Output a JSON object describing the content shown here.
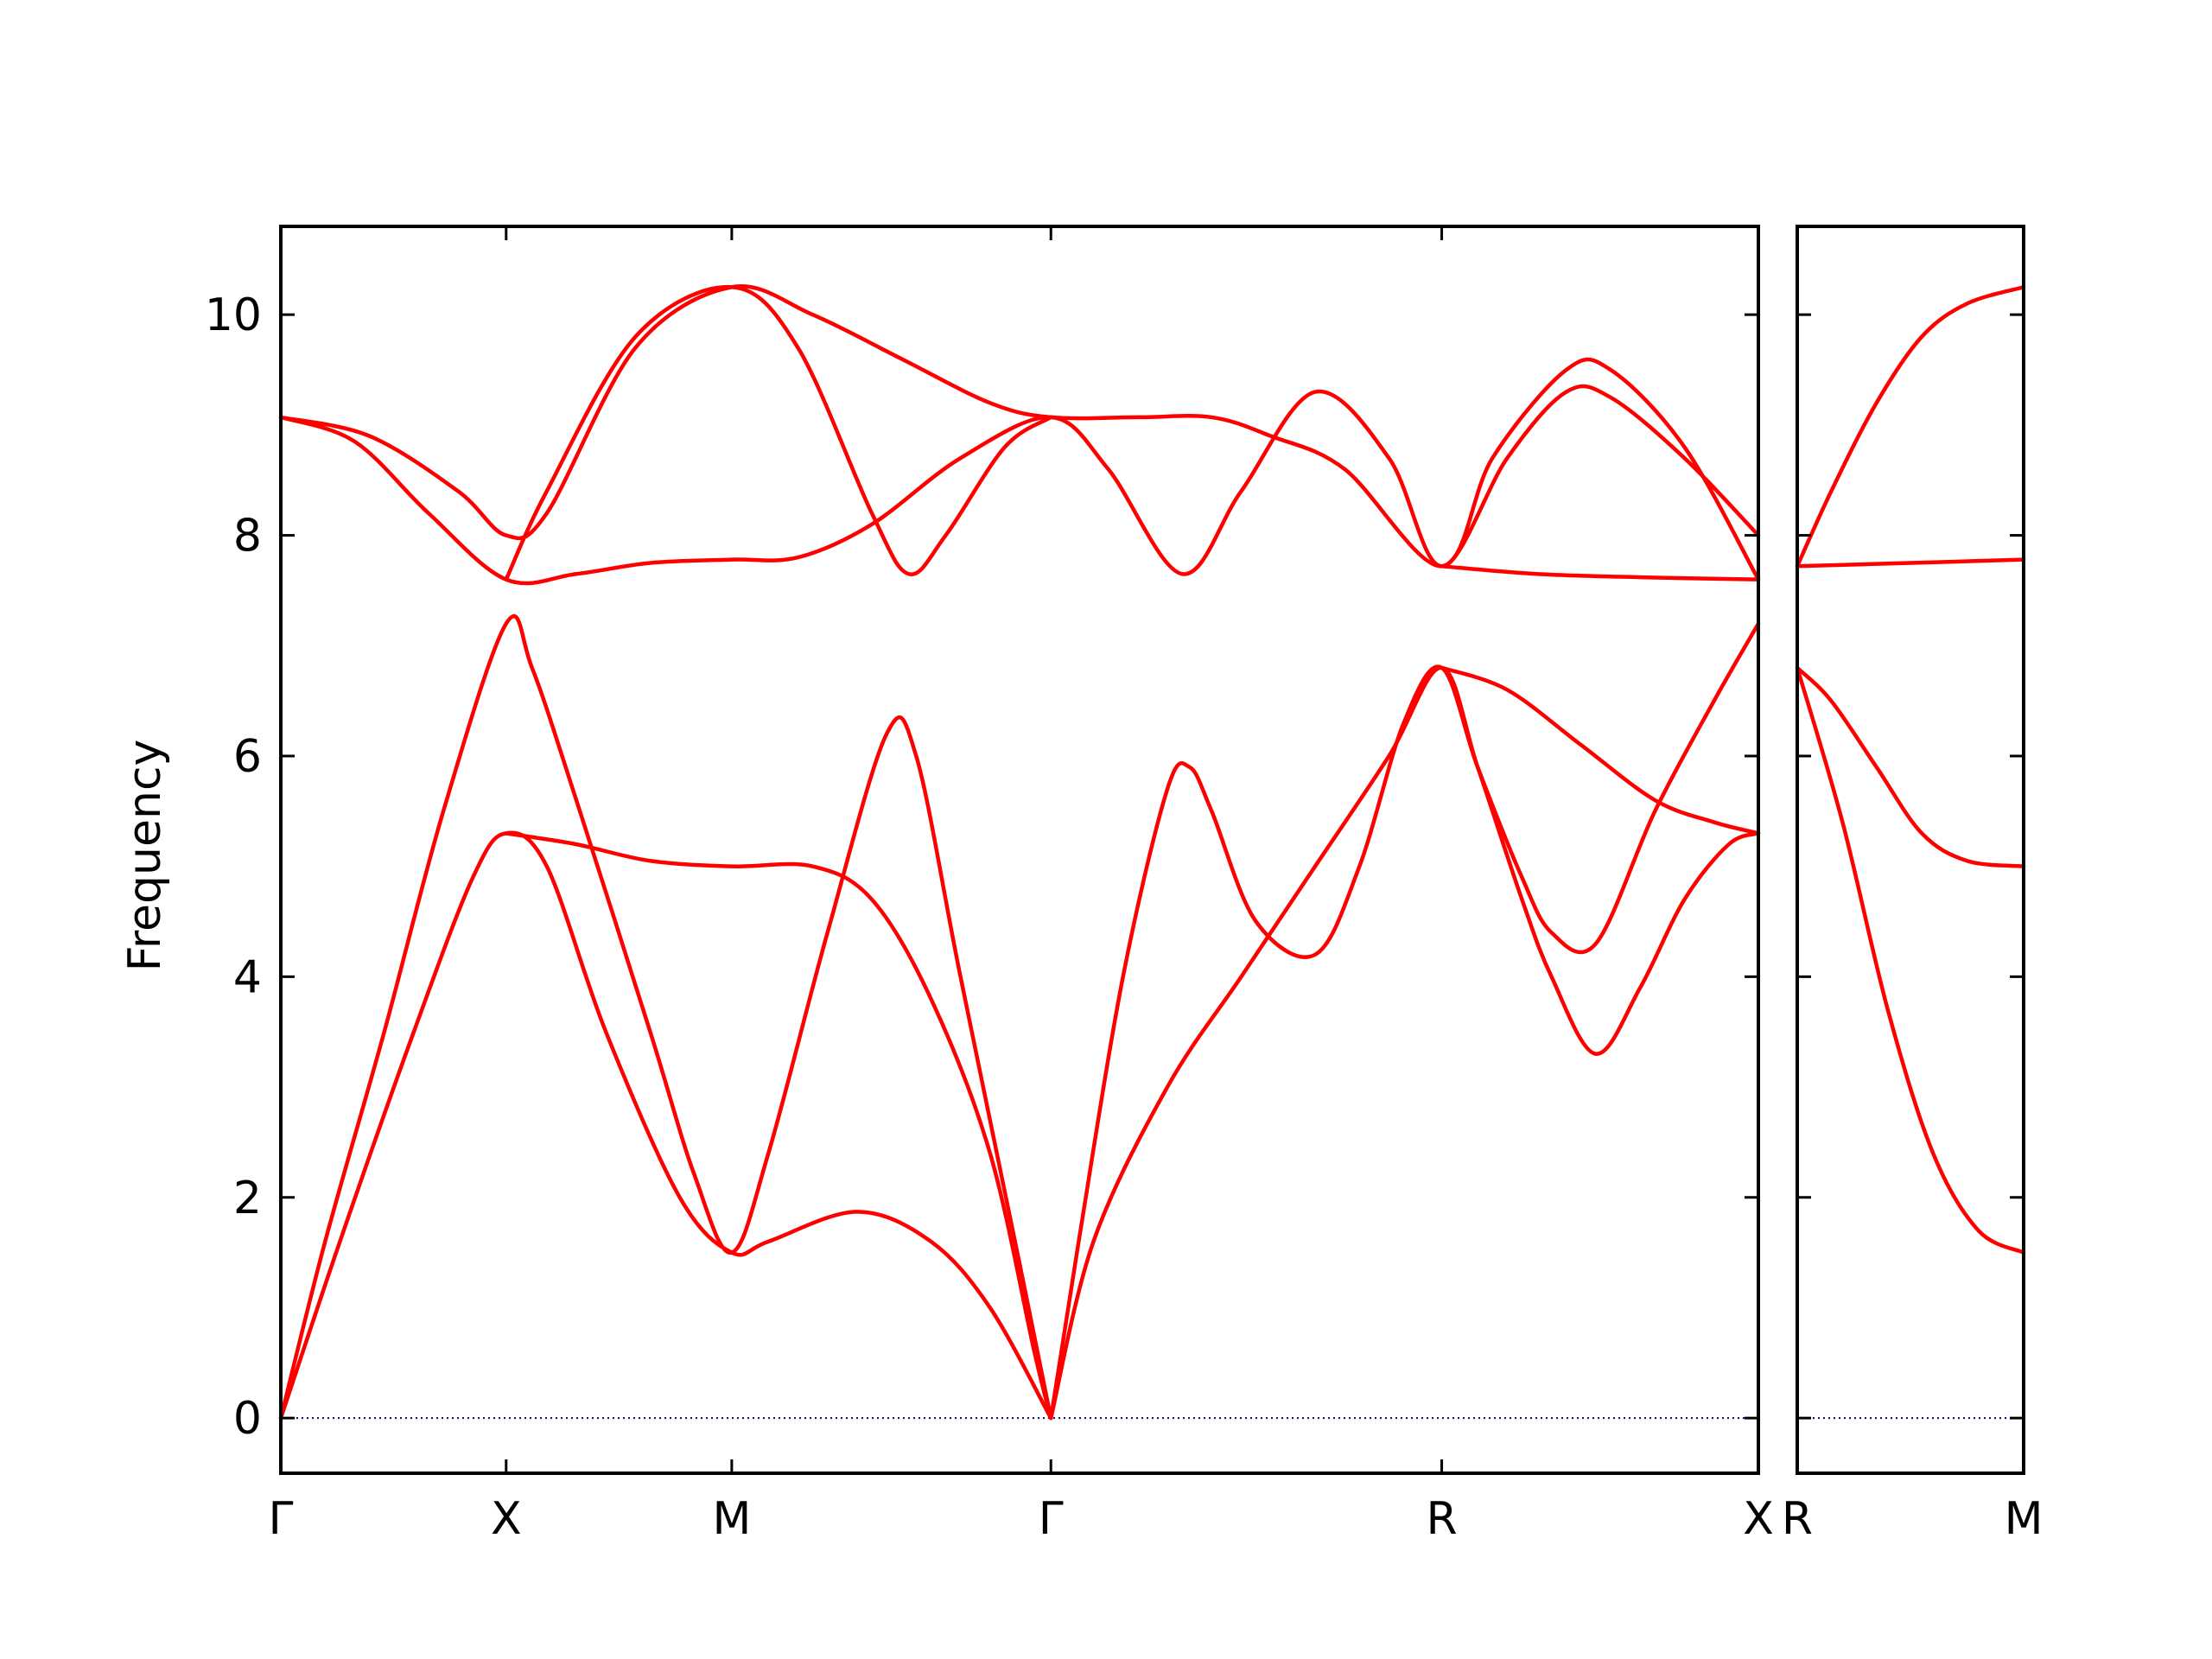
{
  "chart_data": {
    "type": "line",
    "title": "",
    "ylabel": "Frequency",
    "ylim": [
      -0.5,
      10.8
    ],
    "yticks": [
      0,
      2,
      4,
      6,
      8,
      10
    ],
    "grid": false,
    "legend": "none",
    "colors": {
      "bands": "#ff0000",
      "zero_line": "#00008b",
      "axes": "#000000"
    },
    "panels": [
      {
        "name": "main",
        "xlim": [
          0,
          1
        ],
        "xticks": [
          {
            "x": 0.0,
            "label": "Γ"
          },
          {
            "x": 0.1525,
            "label": "X"
          },
          {
            "x": 0.3052,
            "label": "M"
          },
          {
            "x": 0.5212,
            "label": "Γ"
          },
          {
            "x": 0.7857,
            "label": "R"
          },
          {
            "x": 1.0,
            "label": "X"
          }
        ],
        "series": [
          {
            "values": [
              [
                0,
                0
              ],
              [
                0.03,
                1.6
              ],
              [
                0.07,
                3.5
              ],
              [
                0.11,
                5.5
              ],
              [
                0.1525,
                7.2
              ],
              [
                0.17,
                6.8
              ],
              [
                0.2,
                5.6
              ],
              [
                0.25,
                3.5
              ],
              [
                0.28,
                2.2
              ],
              [
                0.3052,
                1.5
              ],
              [
                0.33,
                2.4
              ],
              [
                0.37,
                4.4
              ],
              [
                0.41,
                6.2
              ],
              [
                0.43,
                6.0
              ],
              [
                0.46,
                4.0
              ],
              [
                0.5,
                1.4
              ],
              [
                0.5212,
                0
              ]
            ]
          },
          {
            "values": [
              [
                0,
                0
              ],
              [
                0.04,
                1.6
              ],
              [
                0.09,
                3.5
              ],
              [
                0.13,
                4.9
              ],
              [
                0.1525,
                5.3
              ],
              [
                0.18,
                5.0
              ],
              [
                0.22,
                3.5
              ],
              [
                0.27,
                2.0
              ],
              [
                0.3052,
                1.5
              ],
              [
                0.33,
                1.6
              ],
              [
                0.39,
                1.87
              ],
              [
                0.44,
                1.6
              ],
              [
                0.48,
                1.0
              ],
              [
                0.5212,
                0
              ]
            ]
          },
          {
            "values": [
              [
                0.1525,
                5.3
              ],
              [
                0.2,
                5.2
              ],
              [
                0.25,
                5.05
              ],
              [
                0.3052,
                5.0
              ],
              [
                0.36,
                5.0
              ],
              [
                0.4,
                4.7
              ],
              [
                0.44,
                3.8
              ],
              [
                0.48,
                2.4
              ],
              [
                0.51,
                0.6
              ],
              [
                0.5212,
                0
              ]
            ]
          },
          {
            "values": [
              [
                0.5212,
                0
              ],
              [
                0.55,
                1.6
              ],
              [
                0.6,
                3.0
              ],
              [
                0.65,
                4.0
              ],
              [
                0.7,
                5.0
              ],
              [
                0.75,
                6.0
              ],
              [
                0.7857,
                6.8
              ],
              [
                0.81,
                5.9
              ],
              [
                0.84,
                4.7
              ],
              [
                0.86,
                4.0
              ],
              [
                0.89,
                3.3
              ],
              [
                0.92,
                3.9
              ],
              [
                0.95,
                4.7
              ],
              [
                0.98,
                5.2
              ],
              [
                1.0,
                5.3
              ]
            ]
          },
          {
            "values": [
              [
                0.5212,
                0
              ],
              [
                0.54,
                1.6
              ],
              [
                0.57,
                4.0
              ],
              [
                0.6,
                5.7
              ],
              [
                0.615,
                5.9
              ],
              [
                0.63,
                5.5
              ],
              [
                0.66,
                4.5
              ],
              [
                0.7,
                4.2
              ],
              [
                0.73,
                5.0
              ],
              [
                0.76,
                6.3
              ],
              [
                0.7857,
                6.8
              ],
              [
                0.81,
                5.9
              ],
              [
                0.84,
                4.9
              ],
              [
                0.86,
                4.4
              ],
              [
                0.89,
                4.3
              ],
              [
                0.93,
                5.5
              ],
              [
                0.97,
                6.5
              ],
              [
                1.0,
                7.2
              ]
            ]
          },
          {
            "values": [
              [
                0.7857,
                6.8
              ],
              [
                0.83,
                6.6
              ],
              [
                0.88,
                6.1
              ],
              [
                0.93,
                5.6
              ],
              [
                0.97,
                5.4
              ],
              [
                1.0,
                5.3
              ]
            ]
          },
          {
            "values": [
              [
                0,
                9.07
              ],
              [
                0.05,
                8.85
              ],
              [
                0.1,
                8.2
              ],
              [
                0.1525,
                7.6
              ],
              [
                0.2,
                7.65
              ],
              [
                0.25,
                7.75
              ],
              [
                0.3052,
                7.78
              ],
              [
                0.35,
                7.8
              ],
              [
                0.4,
                8.1
              ],
              [
                0.46,
                8.7
              ],
              [
                0.5212,
                9.07
              ],
              [
                0.56,
                8.6
              ],
              [
                0.61,
                7.65
              ],
              [
                0.65,
                8.4
              ],
              [
                0.7,
                9.3
              ],
              [
                0.75,
                8.7
              ],
              [
                0.7857,
                7.72
              ],
              [
                0.83,
                8.7
              ],
              [
                0.87,
                9.3
              ],
              [
                0.9,
                9.25
              ],
              [
                0.95,
                8.7
              ],
              [
                1.0,
                8.0
              ]
            ]
          },
          {
            "values": [
              [
                0,
                9.07
              ],
              [
                0.06,
                8.9
              ],
              [
                0.12,
                8.4
              ],
              [
                0.1525,
                8.0
              ],
              [
                0.18,
                8.2
              ],
              [
                0.24,
                9.7
              ],
              [
                0.3052,
                10.25
              ],
              [
                0.36,
                10.0
              ],
              [
                0.42,
                9.6
              ],
              [
                0.48,
                9.2
              ],
              [
                0.5212,
                9.07
              ],
              [
                0.58,
                9.07
              ],
              [
                0.63,
                9.07
              ],
              [
                0.67,
                8.9
              ],
              [
                0.72,
                8.6
              ],
              [
                0.7857,
                7.72
              ],
              [
                0.82,
                8.7
              ],
              [
                0.87,
                9.5
              ],
              [
                0.9,
                9.5
              ],
              [
                0.95,
                8.8
              ],
              [
                1.0,
                7.6
              ]
            ]
          },
          {
            "values": [
              [
                0.1525,
                7.6
              ],
              [
                0.18,
                8.4
              ],
              [
                0.24,
                9.8
              ],
              [
                0.3052,
                10.25
              ],
              [
                0.35,
                9.7
              ],
              [
                0.4,
                8.2
              ],
              [
                0.425,
                7.65
              ],
              [
                0.45,
                8.0
              ],
              [
                0.49,
                8.8
              ],
              [
                0.5212,
                9.07
              ]
            ]
          },
          {
            "values": [
              [
                0.7857,
                7.72
              ],
              [
                0.85,
                7.65
              ],
              [
                0.92,
                7.62
              ],
              [
                1.0,
                7.6
              ]
            ]
          }
        ]
      },
      {
        "name": "side",
        "xlim": [
          0,
          1
        ],
        "xticks": [
          {
            "x": 0.0,
            "label": "R"
          },
          {
            "x": 1.0,
            "label": "M"
          }
        ],
        "series": [
          {
            "values": [
              [
                0,
                7.72
              ],
              [
                0.15,
                8.4
              ],
              [
                0.35,
                9.2
              ],
              [
                0.55,
                9.8
              ],
              [
                0.75,
                10.1
              ],
              [
                1.0,
                10.25
              ]
            ]
          },
          {
            "values": [
              [
                0,
                7.72
              ],
              [
                0.5,
                7.75
              ],
              [
                1.0,
                7.78
              ]
            ]
          },
          {
            "values": [
              [
                0,
                6.8
              ],
              [
                0.15,
                6.5
              ],
              [
                0.35,
                5.9
              ],
              [
                0.55,
                5.3
              ],
              [
                0.75,
                5.05
              ],
              [
                1.0,
                5.0
              ]
            ]
          },
          {
            "values": [
              [
                0,
                6.8
              ],
              [
                0.2,
                5.4
              ],
              [
                0.4,
                3.7
              ],
              [
                0.6,
                2.4
              ],
              [
                0.8,
                1.7
              ],
              [
                1.0,
                1.5
              ]
            ]
          }
        ]
      }
    ]
  }
}
